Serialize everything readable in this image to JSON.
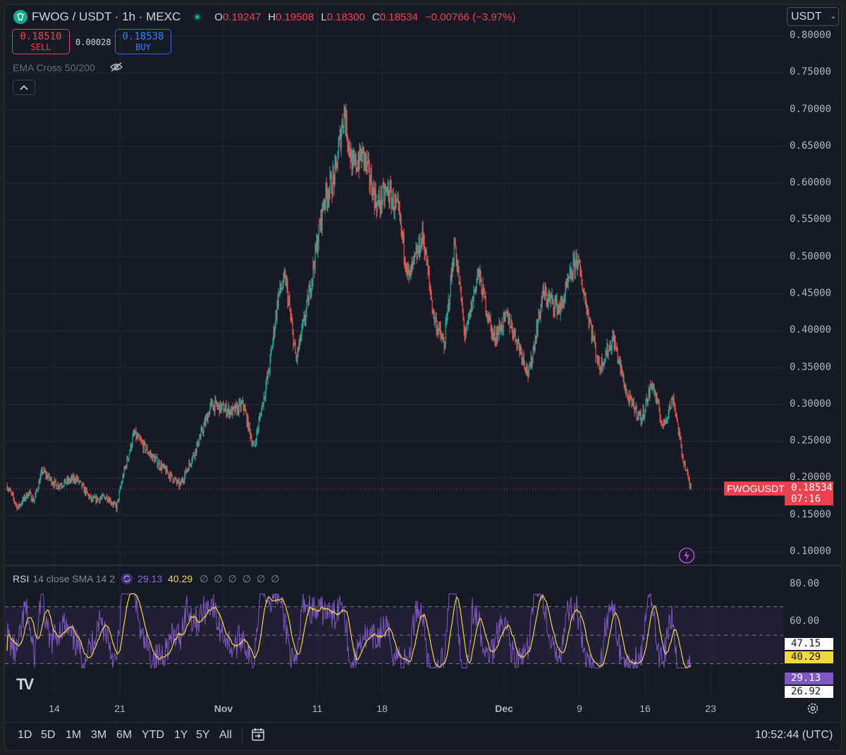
{
  "header": {
    "symbol_title": "FWOG / USDT · 1h · MEXC",
    "open_key": "O",
    "open_value": "0.19247",
    "high_key": "H",
    "high_value": "0.19508",
    "low_key": "L",
    "low_value": "0.18300",
    "close_key": "C",
    "close_value": "0.18534",
    "change": "−0.00766 (−3.97%)"
  },
  "trade": {
    "sell_price": "0.18510",
    "sell_label": "SELL",
    "spread": "0.00028",
    "buy_price": "0.18538",
    "buy_label": "BUY"
  },
  "indicator": {
    "ema_label": "EMA Cross 50/200"
  },
  "currency_select": {
    "value": "USDT"
  },
  "price_axis": {
    "ticks": [
      "0.80000",
      "0.75000",
      "0.70000",
      "0.65000",
      "0.60000",
      "0.55000",
      "0.50000",
      "0.45000",
      "0.40000",
      "0.35000",
      "0.30000",
      "0.25000",
      "0.20000",
      "0.15000",
      "0.10000"
    ],
    "last_symbol": "FWOGUSDT",
    "last_price": "0.18534",
    "countdown": "07:16"
  },
  "rsi": {
    "name": "RSI",
    "params": "14 close SMA 14 2",
    "value": "29.13",
    "sma_value": "40.29",
    "null_symbols": [
      "∅",
      "∅",
      "∅",
      "∅",
      "∅",
      "∅"
    ],
    "axis_ticks": [
      "80.00",
      "60.00"
    ],
    "tag_midline": "47.15",
    "tag_sma": "40.29",
    "tag_rsi": "29.13",
    "tag_low": "26.92",
    "upper_band": 70,
    "lower_band": 30,
    "colors": {
      "rsi": "#7e57c2",
      "sma": "#f3d745",
      "band_fill": "#2a2440"
    }
  },
  "time_axis": [
    "14",
    "21",
    "Nov",
    "11",
    "18",
    "Dec",
    "9",
    "16",
    "23"
  ],
  "ranges": [
    "1D",
    "5D",
    "1M",
    "3M",
    "6M",
    "YTD",
    "1Y",
    "5Y",
    "All"
  ],
  "clock": "10:52:44 (UTC)",
  "colors": {
    "up": "#26a69a",
    "down": "#ef5350",
    "background": "#161a25",
    "price_line": "#e8434f"
  },
  "chart_data": {
    "type": "candlestick",
    "ylim": [
      0.1,
      0.8
    ],
    "anchors": [
      [
        0,
        0.19
      ],
      [
        15,
        0.16
      ],
      [
        30,
        0.18
      ],
      [
        38,
        0.17
      ],
      [
        50,
        0.21
      ],
      [
        70,
        0.19
      ],
      [
        98,
        0.2
      ],
      [
        120,
        0.17
      ],
      [
        142,
        0.175
      ],
      [
        155,
        0.16
      ],
      [
        165,
        0.205
      ],
      [
        180,
        0.26
      ],
      [
        205,
        0.23
      ],
      [
        225,
        0.21
      ],
      [
        245,
        0.19
      ],
      [
        268,
        0.24
      ],
      [
        290,
        0.3
      ],
      [
        320,
        0.29
      ],
      [
        335,
        0.3
      ],
      [
        350,
        0.24
      ],
      [
        372,
        0.35
      ],
      [
        385,
        0.45
      ],
      [
        395,
        0.47
      ],
      [
        410,
        0.36
      ],
      [
        425,
        0.43
      ],
      [
        450,
        0.58
      ],
      [
        465,
        0.61
      ],
      [
        478,
        0.7
      ],
      [
        490,
        0.62
      ],
      [
        505,
        0.64
      ],
      [
        525,
        0.57
      ],
      [
        540,
        0.59
      ],
      [
        555,
        0.56
      ],
      [
        570,
        0.47
      ],
      [
        590,
        0.53
      ],
      [
        605,
        0.42
      ],
      [
        620,
        0.38
      ],
      [
        635,
        0.52
      ],
      [
        650,
        0.39
      ],
      [
        668,
        0.48
      ],
      [
        690,
        0.39
      ],
      [
        710,
        0.42
      ],
      [
        730,
        0.37
      ],
      [
        740,
        0.34
      ],
      [
        760,
        0.45
      ],
      [
        785,
        0.43
      ],
      [
        808,
        0.5
      ],
      [
        825,
        0.42
      ],
      [
        840,
        0.35
      ],
      [
        860,
        0.39
      ],
      [
        880,
        0.31
      ],
      [
        900,
        0.28
      ],
      [
        915,
        0.33
      ],
      [
        930,
        0.27
      ],
      [
        945,
        0.31
      ],
      [
        958,
        0.23
      ],
      [
        970,
        0.185
      ]
    ],
    "last_close": 0.18534
  }
}
